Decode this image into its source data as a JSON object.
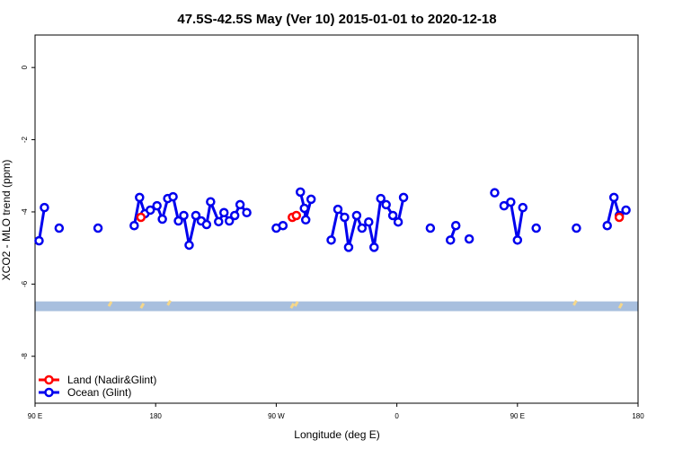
{
  "chart_data": {
    "type": "line",
    "title": "47.5S-42.5S May (Ver 10)   2015-01-01 to 2020-12-18",
    "xlabel": "Longitude (deg E)",
    "ylabel": "XCO2 - MLO trend (ppm)",
    "xlim": [
      90,
      540
    ],
    "ylim": [
      -9.3,
      0.9
    ],
    "x_ticks": [
      {
        "value": 90,
        "label": "90 E"
      },
      {
        "value": 180,
        "label": "180"
      },
      {
        "value": 270,
        "label": "90 W"
      },
      {
        "value": 360,
        "label": "0"
      },
      {
        "value": 450,
        "label": "90 E"
      },
      {
        "value": 540,
        "label": "180"
      }
    ],
    "y_ticks": [
      {
        "value": 0,
        "label": "0"
      },
      {
        "value": -2,
        "label": "-2"
      },
      {
        "value": -4,
        "label": "-4"
      },
      {
        "value": -6,
        "label": "-6"
      },
      {
        "value": -8,
        "label": "-8"
      }
    ],
    "band": {
      "y_min": -6.75,
      "y_max": -6.48,
      "color": "#a8bfde",
      "land_color": "#f5d78a"
    },
    "land_marks": [
      {
        "x": 146,
        "y": -6.55
      },
      {
        "x": 170,
        "y": -6.6
      },
      {
        "x": 190,
        "y": -6.52
      },
      {
        "x": 282,
        "y": -6.6
      },
      {
        "x": 285,
        "y": -6.55
      },
      {
        "x": 493,
        "y": -6.52
      },
      {
        "x": 527,
        "y": -6.6
      }
    ],
    "series": [
      {
        "name": "Land (Nadir&Glint)",
        "color": "#ff0000",
        "segments": [
          [
            [
              169,
              -4.15
            ]
          ],
          [
            [
              282,
              -4.15
            ],
            [
              285,
              -4.1
            ]
          ],
          [
            [
              526,
              -4.15
            ]
          ]
        ]
      },
      {
        "name": "Ocean (Glint)",
        "color": "#0000ee",
        "segments": [
          [
            [
              93,
              -4.8
            ],
            [
              97,
              -3.88
            ]
          ],
          [
            [
              108,
              -4.45
            ]
          ],
          [
            [
              137,
              -4.45
            ]
          ],
          [
            [
              164,
              -4.38
            ],
            [
              168,
              -3.6
            ],
            [
              172,
              -4.05
            ],
            [
              176,
              -3.95
            ],
            [
              181,
              -3.83
            ],
            [
              185,
              -4.2
            ],
            [
              189,
              -3.63
            ],
            [
              193,
              -3.58
            ],
            [
              197,
              -4.25
            ],
            [
              201,
              -4.1
            ],
            [
              205,
              -4.92
            ],
            [
              210,
              -4.1
            ],
            [
              214,
              -4.25
            ],
            [
              218,
              -4.35
            ],
            [
              221,
              -3.72
            ],
            [
              227,
              -4.27
            ],
            [
              231,
              -4.02
            ],
            [
              235,
              -4.25
            ],
            [
              239,
              -4.1
            ],
            [
              243,
              -3.8
            ],
            [
              248,
              -4.02
            ]
          ],
          [
            [
              270,
              -4.45
            ],
            [
              275,
              -4.38
            ]
          ],
          [
            [
              288,
              -3.45
            ],
            [
              291,
              -3.9
            ],
            [
              292,
              -4.22
            ],
            [
              296,
              -3.65
            ]
          ],
          [
            [
              311,
              -4.78
            ],
            [
              316,
              -3.93
            ],
            [
              321,
              -4.15
            ],
            [
              324,
              -4.98
            ],
            [
              330,
              -4.1
            ],
            [
              334,
              -4.45
            ],
            [
              339,
              -4.28
            ],
            [
              343,
              -4.98
            ],
            [
              348,
              -3.63
            ],
            [
              352,
              -3.8
            ],
            [
              357,
              -4.1
            ],
            [
              361,
              -4.28
            ],
            [
              365,
              -3.6
            ]
          ],
          [
            [
              385,
              -4.45
            ]
          ],
          [
            [
              400,
              -4.78
            ],
            [
              404,
              -4.38
            ]
          ],
          [
            [
              414,
              -4.75
            ]
          ],
          [
            [
              433,
              -3.47
            ]
          ],
          [
            [
              440,
              -3.83
            ],
            [
              445,
              -3.73
            ],
            [
              450,
              -4.78
            ],
            [
              454,
              -3.88
            ]
          ],
          [
            [
              464,
              -4.45
            ]
          ],
          [
            [
              494,
              -4.45
            ]
          ],
          [
            [
              517,
              -4.38
            ],
            [
              522,
              -3.6
            ],
            [
              526,
              -4.1
            ],
            [
              531,
              -3.95
            ]
          ]
        ]
      }
    ],
    "legend_position": "bottom-left"
  }
}
